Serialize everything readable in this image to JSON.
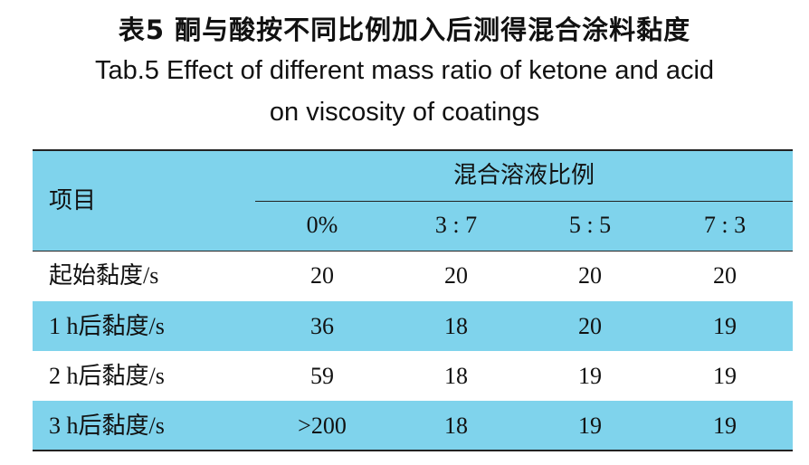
{
  "caption": {
    "cn": "表5  酮与酸按不同比例加入后测得混合涂料黏度",
    "en_line1": "Tab.5 Effect of different mass ratio of ketone and acid",
    "en_line2": "on viscosity of coatings"
  },
  "table": {
    "row_header": "项目",
    "group_header": "混合溶液比例",
    "columns": [
      "0%",
      "3 : 7",
      "5 : 5",
      "7 : 3"
    ],
    "rows": [
      {
        "label": "起始黏度/s",
        "values": [
          "20",
          "20",
          "20",
          "20"
        ]
      },
      {
        "label": "1 h后黏度/s",
        "values": [
          "36",
          "18",
          "20",
          "19"
        ]
      },
      {
        "label": "2 h后黏度/s",
        "values": [
          "59",
          "18",
          "19",
          "19"
        ]
      },
      {
        "label": "3 h后黏度/s",
        "values": [
          ">200",
          "18",
          "19",
          "19"
        ]
      }
    ]
  },
  "colors": {
    "band": "#7fd3ec",
    "rule": "#222222"
  }
}
